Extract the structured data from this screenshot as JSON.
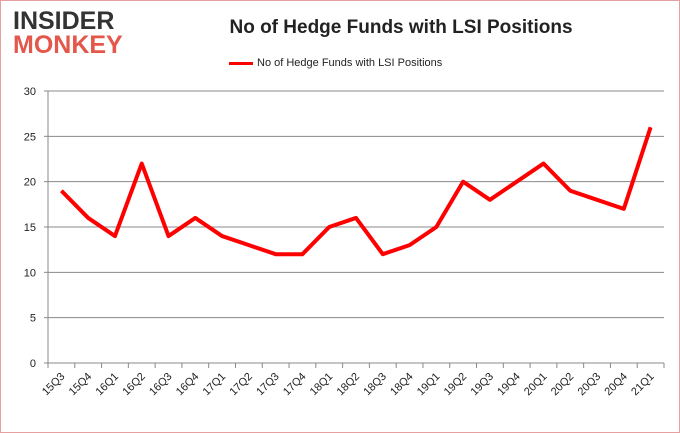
{
  "logo": {
    "line1": "INSIDER",
    "line2": "MONKEY"
  },
  "chart_data": {
    "type": "line",
    "title": "No of Hedge Funds with LSI Positions",
    "xlabel": "",
    "ylabel": "",
    "ylim": [
      0,
      30
    ],
    "yticks": [
      0,
      5,
      10,
      15,
      20,
      25,
      30
    ],
    "grid": true,
    "legend_position": "top-center",
    "categories": [
      "15Q3",
      "15Q4",
      "16Q1",
      "16Q2",
      "16Q3",
      "16Q4",
      "17Q1",
      "17Q2",
      "17Q3",
      "17Q4",
      "18Q1",
      "18Q2",
      "18Q3",
      "18Q4",
      "19Q1",
      "19Q2",
      "19Q3",
      "19Q4",
      "20Q1",
      "20Q2",
      "20Q3",
      "20Q4",
      "21Q1"
    ],
    "series": [
      {
        "name": "No of Hedge Funds with LSI Positions",
        "color": "#ff0000",
        "values": [
          19,
          16,
          14,
          22,
          14,
          16,
          14,
          13,
          12,
          12,
          15,
          16,
          12,
          13,
          15,
          20,
          18,
          20,
          22,
          19,
          18,
          17,
          26
        ]
      }
    ]
  }
}
